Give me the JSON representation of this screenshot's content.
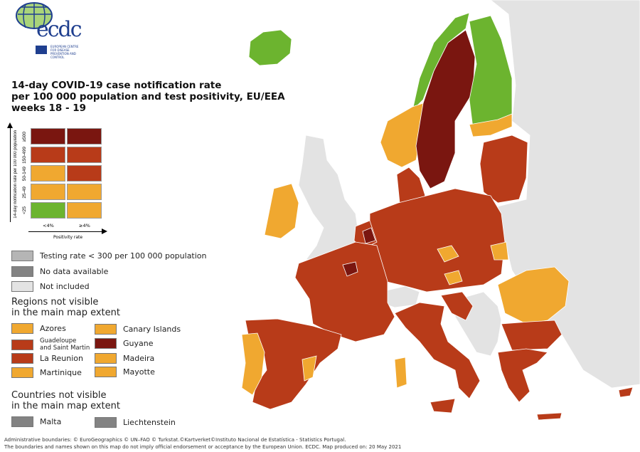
{
  "logo": {
    "text": "ecdc",
    "subtitle": "EUROPEAN CENTRE FOR DISEASE PREVENTION AND CONTROL"
  },
  "title": {
    "line1": "14-day COVID-19 case notification rate",
    "line2": "per 100 000 population and test positivity, EU/EEA",
    "line3": "weeks 18 - 19"
  },
  "colors": {
    "ge500": "#7a1610",
    "r150_499": "#b83b19",
    "orange": "#f0a830",
    "green": "#6cb42f",
    "testing_low": "#b5b5b5",
    "no_data": "#838383",
    "not_included": "#e3e3e3"
  },
  "matrix": {
    "y_axis_label": "14-day notification rate per 100 000 population",
    "x_axis_label": "Positivity rate",
    "rows": [
      "≥500",
      "150-499",
      "50-149",
      "25-49",
      "<25"
    ],
    "cols": [
      "<4%",
      "≥4%"
    ]
  },
  "legend": {
    "testing": "Testing rate < 300 per 100 000 population",
    "no_data": "No data available",
    "not_included": "Not included",
    "regions_heading_1": "Regions not visible",
    "regions_heading_2": "in the main map extent",
    "regions": [
      {
        "label": "Azores",
        "color": "#f0a830"
      },
      {
        "label": "Canary Islands",
        "color": "#f0a830"
      },
      {
        "label": "Guadeloupe\nand Saint Martin",
        "label1": "Guadeloupe",
        "label2": "and Saint Martin",
        "color": "#b83b19"
      },
      {
        "label": "Guyane",
        "color": "#7a1610"
      },
      {
        "label": "La Reunion",
        "color": "#b83b19"
      },
      {
        "label": "Madeira",
        "color": "#f0a830"
      },
      {
        "label": "Martinique",
        "color": "#f0a830"
      },
      {
        "label": "Mayotte",
        "color": "#f0a830"
      }
    ],
    "countries_heading_1": "Countries not visible",
    "countries_heading_2": "in the main map extent",
    "countries": [
      {
        "label": "Malta",
        "color": "#838383"
      },
      {
        "label": "Liechtenstein",
        "color": "#838383"
      }
    ]
  },
  "footer": {
    "line1": "Administrative boundaries: © EuroGeographics © UN–FAO © Turkstat.©Kartverket©Instituto Nacional de Estatística - Statistics Portugal.",
    "line2": "The boundaries and names shown on this map do not imply official endorsement or acceptance by the European Union. ECDC. Map produced on: 20 May 2021"
  }
}
